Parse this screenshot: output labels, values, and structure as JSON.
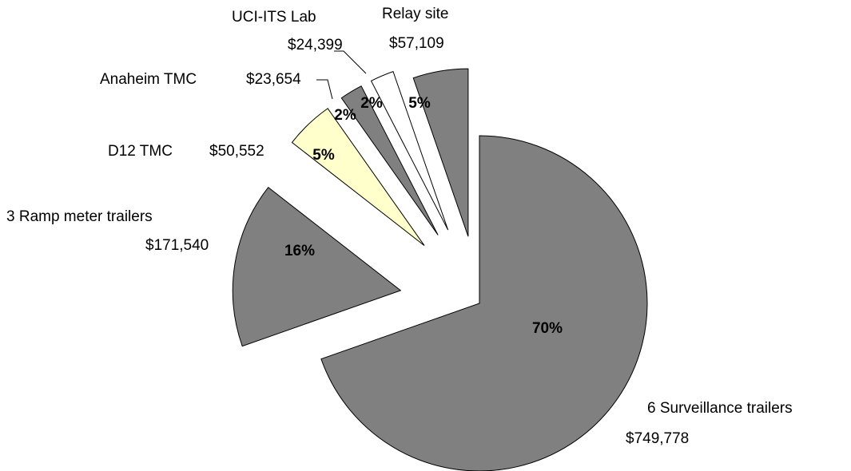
{
  "chart_data": {
    "type": "pie",
    "categories": [
      "6 Surveillance trailers",
      "3 Ramp meter trailers",
      "D12 TMC",
      "Anaheim TMC",
      "UCI-ITS Lab",
      "Relay site"
    ],
    "values": [
      749778,
      171540,
      50552,
      23654,
      24399,
      57109
    ],
    "value_labels": [
      "$749,778",
      "$171,540",
      "$50,552",
      "$23,654",
      "$24,399",
      "$57,109"
    ],
    "percent_labels": [
      "70%",
      "16%",
      "5%",
      "2%",
      "2%",
      "5%"
    ],
    "colors": [
      "#808080",
      "#808080",
      "#ffffcc",
      "#808080",
      "#ffffff",
      "#808080"
    ]
  }
}
